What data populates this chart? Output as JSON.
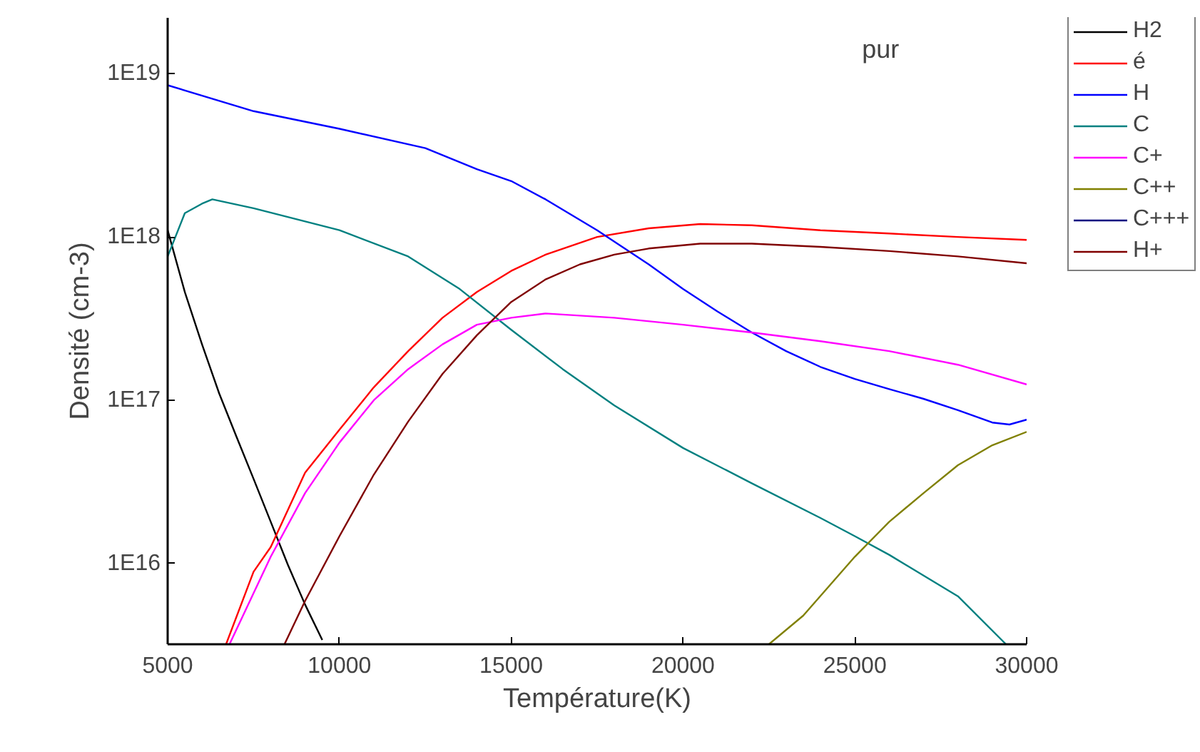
{
  "chart_data": {
    "type": "line",
    "title": "pur",
    "xlabel": "Température(K)",
    "ylabel": "Densité (cm-3)",
    "xlim": [
      5000,
      30000
    ],
    "xticks": [
      5000,
      10000,
      15000,
      20000,
      25000,
      30000
    ],
    "ylim": [
      3200000000000000.0,
      2.2e+19
    ],
    "yticks": [
      {
        "value": 1e+16,
        "label": "1E16"
      },
      {
        "value": 1e+17,
        "label": "1E17"
      },
      {
        "value": 1e+18,
        "label": "1E18"
      },
      {
        "value": 1e+19,
        "label": "1E19"
      }
    ],
    "log": "y",
    "grid": false,
    "legend": "right",
    "line_style": "solid",
    "marker": "none",
    "series": [
      {
        "name": "H2",
        "color": "#000000",
        "x": [
          5000,
          5500,
          6000,
          6500,
          7000,
          7500,
          8000,
          8500,
          9000,
          9500
        ],
        "values": [
          1.1e+18,
          4.6e+17,
          2.2e+17,
          1.1e+17,
          6e+16,
          3.3e+16,
          1.8e+16,
          9800000000000000.0,
          5600000000000000.0,
          3400000000000000.0
        ]
      },
      {
        "name": "é",
        "color": "#ff0000",
        "x": [
          6700,
          7500,
          8000,
          9000,
          10000,
          11000,
          12000,
          13000,
          14000,
          15000,
          16000,
          17500,
          19000,
          20500,
          22000,
          24000,
          26000,
          28000,
          30000
        ],
        "values": [
          3200000000000000.0,
          8900000000000000.0,
          1.26e+16,
          3.6e+16,
          6.6e+16,
          1.2e+17,
          2e+17,
          3.2e+17,
          4.6e+17,
          6.2e+17,
          7.8e+17,
          1e+18,
          1.13e+18,
          1.2e+18,
          1.18e+18,
          1.1e+18,
          1.05e+18,
          1e+18,
          9.6e+17
        ]
      },
      {
        "name": "H",
        "color": "#0000ff",
        "x": [
          5000,
          7500,
          10000,
          12500,
          14000,
          15000,
          16000,
          17500,
          19000,
          20000,
          21000,
          22000,
          23000,
          24000,
          25000,
          26000,
          27000,
          28000,
          29000,
          29500,
          30000
        ],
        "values": [
          8.5e+18,
          5.9e+18,
          4.6e+18,
          3.5e+18,
          2.6e+18,
          2.2e+18,
          1.7e+18,
          1.1e+18,
          6.8e+17,
          4.8e+17,
          3.5e+17,
          2.6e+17,
          2e+17,
          1.6e+17,
          1.35e+17,
          1.17e+17,
          1.02e+17,
          8.7e+16,
          7.3e+16,
          7.1e+16,
          7.6e+16
        ]
      },
      {
        "name": "C",
        "color": "#008080",
        "x": [
          5000,
          5500,
          6000,
          6300,
          7500,
          10000,
          12000,
          13500,
          15000,
          16500,
          18000,
          20000,
          22000,
          24000,
          25000,
          26000,
          28000,
          29400
        ],
        "values": [
          7.6e+17,
          1.4e+18,
          1.6e+18,
          1.7e+18,
          1.5e+18,
          1.1e+18,
          7.6e+17,
          4.8e+17,
          2.7e+17,
          1.55e+17,
          9.3e+16,
          5.1e+16,
          3.1e+16,
          1.9e+16,
          1.47e+16,
          1.13e+16,
          6300000000000000.0,
          3200000000000000.0
        ]
      },
      {
        "name": "C+",
        "color": "#ff00ff",
        "x": [
          6800,
          8000,
          9000,
          10000,
          11000,
          12000,
          13000,
          14000,
          15000,
          16000,
          17000,
          18000,
          20000,
          22000,
          24000,
          26000,
          28000,
          30000
        ],
        "values": [
          3200000000000000.0,
          1.1e+16,
          2.7e+16,
          5.5e+16,
          1e+17,
          1.55e+17,
          2.2e+17,
          2.9e+17,
          3.2e+17,
          3.4e+17,
          3.3e+17,
          3.2e+17,
          2.9e+17,
          2.6e+17,
          2.3e+17,
          2e+17,
          1.65e+17,
          1.25e+17
        ]
      },
      {
        "name": "C++",
        "color": "#808000",
        "x": [
          22500,
          23500,
          25000,
          26000,
          27000,
          28000,
          29000,
          30000
        ],
        "values": [
          3200000000000000.0,
          4800000000000000.0,
          1.1e+16,
          1.8e+16,
          2.7e+16,
          4e+16,
          5.3e+16,
          6.4e+16
        ]
      },
      {
        "name": "C+++",
        "color": "#000080"
      },
      {
        "name": "H+",
        "color": "#800000",
        "x": [
          8400,
          9000,
          10000,
          11000,
          12000,
          13000,
          14000,
          15000,
          16000,
          17000,
          18000,
          19000,
          20500,
          22000,
          24000,
          26000,
          28000,
          30000
        ],
        "values": [
          3200000000000000.0,
          5900000000000000.0,
          1.47e+16,
          3.5e+16,
          7.4e+16,
          1.45e+17,
          2.5e+17,
          4e+17,
          5.5e+17,
          6.8e+17,
          7.8e+17,
          8.5e+17,
          9.1e+17,
          9.1e+17,
          8.7e+17,
          8.2e+17,
          7.6e+17,
          6.9e+17
        ]
      }
    ]
  }
}
